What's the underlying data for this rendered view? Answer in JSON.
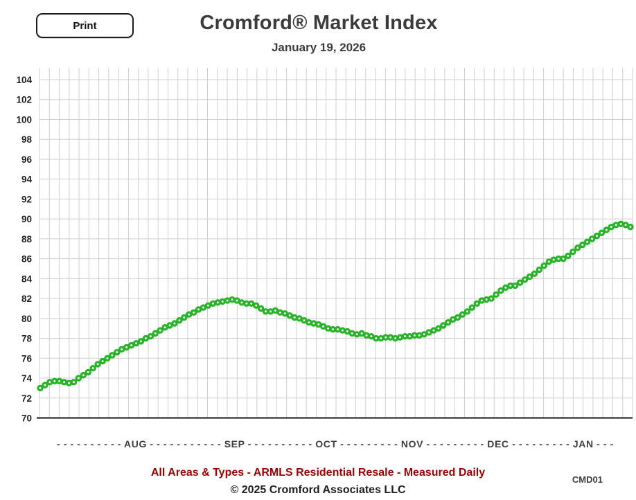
{
  "header": {
    "print_label": "Print",
    "title": "Cromford® Market Index",
    "subtitle": "January 19, 2026"
  },
  "footer": {
    "series_caption": "All Areas & Types - ARMLS Residential Resale - Measured Daily",
    "chart_code": "CMD01",
    "copyright": "© 2025 Cromford Associates LLC"
  },
  "colors": {
    "series_green": "#27b227",
    "marker_hole": "#ffffff",
    "caption_red": "#990000",
    "grid_line": "#cfcfcf",
    "axis_line": "#111111",
    "tick_text": "#222222"
  },
  "chart_data": {
    "type": "line",
    "title": "Cromford® Market Index",
    "subtitle": "January 19, 2026",
    "ylabel": "",
    "xlabel": "",
    "ylim": [
      70,
      104
    ],
    "y_tick_step": 2,
    "y_ticks": [
      104,
      102,
      100,
      98,
      96,
      94,
      92,
      90,
      88,
      86,
      84,
      82,
      80,
      78,
      76,
      74,
      72,
      70
    ],
    "x_months": [
      "AUG",
      "SEP",
      "OCT",
      "NOV",
      "DEC",
      "JAN"
    ],
    "x_axis_label_line": "- - - - - - - - - - AUG - - - - - - - - - - - SEP - - - - - - - - - - OCT - - - - - - - - - NOV - - - - - - - - - DEC - - - - - - - - - JAN - - -",
    "grid": true,
    "legend": "none",
    "marker": "dotted-circle",
    "series_name": "Cromford Market Index (measured daily)",
    "values": [
      73.0,
      73.3,
      73.6,
      73.7,
      73.7,
      73.6,
      73.5,
      73.6,
      74.0,
      74.3,
      74.6,
      75.0,
      75.4,
      75.7,
      76.0,
      76.3,
      76.6,
      76.9,
      77.1,
      77.3,
      77.5,
      77.7,
      78.0,
      78.2,
      78.5,
      78.8,
      79.1,
      79.3,
      79.5,
      79.8,
      80.1,
      80.4,
      80.6,
      80.9,
      81.1,
      81.3,
      81.5,
      81.6,
      81.7,
      81.8,
      81.9,
      81.8,
      81.6,
      81.5,
      81.5,
      81.3,
      81.0,
      80.7,
      80.7,
      80.8,
      80.6,
      80.5,
      80.3,
      80.1,
      80.0,
      79.8,
      79.6,
      79.5,
      79.4,
      79.2,
      79.0,
      78.9,
      78.9,
      78.8,
      78.7,
      78.5,
      78.4,
      78.5,
      78.3,
      78.2,
      78.0,
      78.0,
      78.1,
      78.1,
      78.0,
      78.1,
      78.2,
      78.2,
      78.3,
      78.3,
      78.4,
      78.6,
      78.8,
      79.0,
      79.3,
      79.6,
      79.9,
      80.1,
      80.4,
      80.7,
      81.1,
      81.5,
      81.8,
      81.9,
      82.0,
      82.4,
      82.8,
      83.1,
      83.3,
      83.3,
      83.6,
      83.9,
      84.2,
      84.5,
      84.9,
      85.3,
      85.7,
      85.9,
      86.0,
      86.0,
      86.3,
      86.7,
      87.1,
      87.4,
      87.7,
      88.0,
      88.3,
      88.6,
      88.9,
      89.2,
      89.4,
      89.5,
      89.4,
      89.2
    ]
  }
}
